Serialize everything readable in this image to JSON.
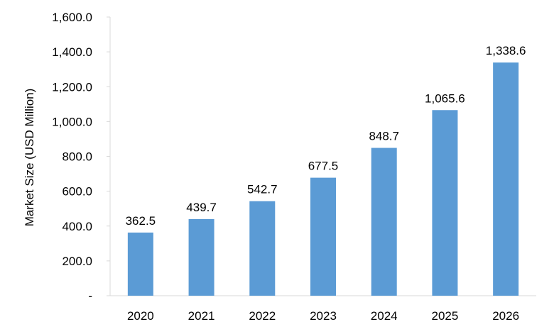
{
  "chart_data": {
    "type": "bar",
    "categories": [
      "2020",
      "2021",
      "2022",
      "2023",
      "2024",
      "2025",
      "2026"
    ],
    "values": [
      362.5,
      439.7,
      542.7,
      677.5,
      848.7,
      1065.6,
      1338.6
    ],
    "value_labels": [
      "362.5",
      "439.7",
      "542.7",
      "677.5",
      "848.7",
      "1,065.6",
      "1,338.6"
    ],
    "title": "",
    "xlabel": "",
    "ylabel": "Market Size (USD Million)",
    "ylim": [
      0,
      1600
    ],
    "yticks": [
      0,
      200,
      400,
      600,
      800,
      1000,
      1200,
      1400,
      1600
    ],
    "ytick_labels": [
      "-",
      "200.0",
      "400.0",
      "600.0",
      "800.0",
      "1,000.0",
      "1,200.0",
      "1,400.0",
      "1,600.0"
    ],
    "bar_color": "#5b9bd5",
    "grid": false,
    "legend": "none"
  }
}
